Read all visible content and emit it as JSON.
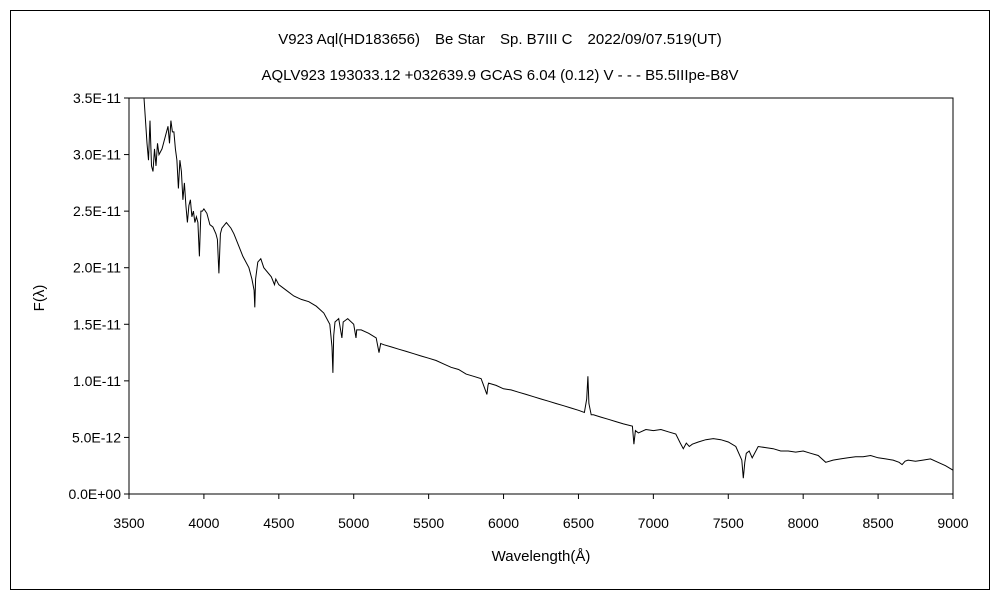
{
  "chart_data": {
    "type": "line",
    "title": "V923 Aql(HD183656)　Be Star　Sp. B7III C　2022/09/07.519(UT)",
    "subtitle": "AQLV923 193033.12 +032639.9 GCAS 6.04 (0.12) V - - - B5.5IIIpe-B8V",
    "xlabel": "Wavelength(Å)",
    "ylabel": "F(λ)",
    "xlim": [
      3500,
      9000
    ],
    "ylim": [
      0,
      3.5e-11
    ],
    "x_ticks": [
      3500,
      4000,
      4500,
      5000,
      5500,
      6000,
      6500,
      7000,
      7500,
      8000,
      8500,
      9000
    ],
    "x_tick_labels": [
      "3500",
      "4000",
      "4500",
      "5000",
      "5500",
      "6000",
      "6500",
      "7000",
      "7500",
      "8000",
      "8500",
      "9000"
    ],
    "y_ticks": [
      0,
      5e-12,
      1e-11,
      1.5e-11,
      2e-11,
      2.5e-11,
      3e-11,
      3.5e-11
    ],
    "y_tick_labels": [
      "0.0E+00",
      "5.0E-12",
      "1.0E-11",
      "1.5E-11",
      "2.0E-11",
      "2.5E-11",
      "3.0E-11",
      "3.5E-11"
    ],
    "grid": false,
    "legend": "none",
    "line_color": "#000000",
    "series": [
      {
        "x": [
          3600,
          3610,
          3620,
          3630,
          3640,
          3650,
          3660,
          3670,
          3680,
          3690,
          3700,
          3720,
          3740,
          3760,
          3770,
          3780,
          3790,
          3800,
          3810,
          3820,
          3830,
          3840,
          3850,
          3860,
          3870,
          3880,
          3890,
          3900,
          3910,
          3920,
          3930,
          3940,
          3950,
          3960,
          3970,
          3980,
          3990,
          4000,
          4020,
          4040,
          4060,
          4080,
          4090,
          4100,
          4110,
          4120,
          4150,
          4180,
          4200,
          4230,
          4260,
          4300,
          4320,
          4335,
          4340,
          4345,
          4360,
          4380,
          4400,
          4450,
          4471,
          4480,
          4500,
          4550,
          4600,
          4650,
          4700,
          4750,
          4800,
          4840,
          4855,
          4861,
          4866,
          4875,
          4900,
          4921,
          4930,
          4960,
          5000,
          5015,
          5020,
          5050,
          5100,
          5150,
          5169,
          5180,
          5200,
          5250,
          5300,
          5350,
          5400,
          5450,
          5500,
          5550,
          5600,
          5650,
          5700,
          5750,
          5800,
          5850,
          5889,
          5896,
          5900,
          5950,
          6000,
          6050,
          6100,
          6150,
          6200,
          6250,
          6300,
          6350,
          6400,
          6450,
          6500,
          6540,
          6555,
          6563,
          6570,
          6585,
          6600,
          6650,
          6700,
          6750,
          6800,
          6860,
          6870,
          6880,
          6900,
          6950,
          7000,
          7050,
          7100,
          7150,
          7180,
          7200,
          7220,
          7240,
          7260,
          7300,
          7350,
          7400,
          7450,
          7500,
          7550,
          7590,
          7600,
          7610,
          7620,
          7640,
          7660,
          7700,
          7750,
          7800,
          7850,
          7900,
          7950,
          8000,
          8050,
          8100,
          8150,
          8200,
          8250,
          8300,
          8350,
          8400,
          8450,
          8500,
          8550,
          8600,
          8640,
          8660,
          8680,
          8700,
          8750,
          8800,
          8850,
          8900,
          8950,
          9000
        ],
        "y": [
          3.5e-11,
          3.3e-11,
          3.1e-11,
          2.95e-11,
          3.3e-11,
          2.9e-11,
          2.85e-11,
          3.05e-11,
          2.9e-11,
          3.1e-11,
          3e-11,
          3.05e-11,
          3.15e-11,
          3.25e-11,
          3.1e-11,
          3.3e-11,
          3.2e-11,
          3.2e-11,
          3.05e-11,
          2.95e-11,
          2.7e-11,
          2.95e-11,
          2.85e-11,
          2.6e-11,
          2.75e-11,
          2.55e-11,
          2.4e-11,
          2.55e-11,
          2.6e-11,
          2.45e-11,
          2.5e-11,
          2.4e-11,
          2.45e-11,
          2.4e-11,
          2.1e-11,
          2.5e-11,
          2.5e-11,
          2.52e-11,
          2.48e-11,
          2.38e-11,
          2.36e-11,
          2.3e-11,
          2.25e-11,
          1.95e-11,
          2.3e-11,
          2.35e-11,
          2.4e-11,
          2.35e-11,
          2.3e-11,
          2.2e-11,
          2.1e-11,
          2e-11,
          1.9e-11,
          1.8e-11,
          1.65e-11,
          1.9e-11,
          2.05e-11,
          2.08e-11,
          2e-11,
          1.92e-11,
          1.85e-11,
          1.9e-11,
          1.85e-11,
          1.8e-11,
          1.75e-11,
          1.72e-11,
          1.7e-11,
          1.66e-11,
          1.6e-11,
          1.5e-11,
          1.3e-11,
          1.07e-11,
          1.4e-11,
          1.52e-11,
          1.55e-11,
          1.38e-11,
          1.52e-11,
          1.55e-11,
          1.5e-11,
          1.38e-11,
          1.45e-11,
          1.45e-11,
          1.42e-11,
          1.38e-11,
          1.25e-11,
          1.33e-11,
          1.32e-11,
          1.3e-11,
          1.28e-11,
          1.26e-11,
          1.24e-11,
          1.22e-11,
          1.2e-11,
          1.18e-11,
          1.15e-11,
          1.12e-11,
          1.1e-11,
          1.06e-11,
          1.04e-11,
          1.02e-11,
          8.8e-12,
          9.6e-12,
          9.8e-12,
          9.6e-12,
          9.3e-12,
          9.2e-12,
          9e-12,
          8.8e-12,
          8.6e-12,
          8.4e-12,
          8.2e-12,
          8e-12,
          7.8e-12,
          7.6e-12,
          7.4e-12,
          7.2e-12,
          8.4e-12,
          1.04e-11,
          8e-12,
          7e-12,
          7e-12,
          6.8e-12,
          6.6e-12,
          6.4e-12,
          6.2e-12,
          6e-12,
          4.4e-12,
          5.6e-12,
          5.4e-12,
          5.7e-12,
          5.6e-12,
          5.7e-12,
          5.5e-12,
          5.3e-12,
          4.5e-12,
          4e-12,
          4.5e-12,
          4.2e-12,
          4.4e-12,
          4.6e-12,
          4.8e-12,
          4.9e-12,
          4.8e-12,
          4.6e-12,
          4.2e-12,
          3e-12,
          1.4e-12,
          2.8e-12,
          3.6e-12,
          3.8e-12,
          3.2e-12,
          4.2e-12,
          4.1e-12,
          4e-12,
          3.8e-12,
          3.8e-12,
          3.7e-12,
          3.8e-12,
          3.6e-12,
          3.4e-12,
          2.8e-12,
          3e-12,
          3.1e-12,
          3.2e-12,
          3.3e-12,
          3.3e-12,
          3.4e-12,
          3.2e-12,
          3.1e-12,
          3e-12,
          2.8e-12,
          2.6e-12,
          2.9e-12,
          3e-12,
          2.9e-12,
          3e-12,
          3.1e-12,
          2.8e-12,
          2.5e-12,
          2.1e-12
        ]
      }
    ]
  }
}
